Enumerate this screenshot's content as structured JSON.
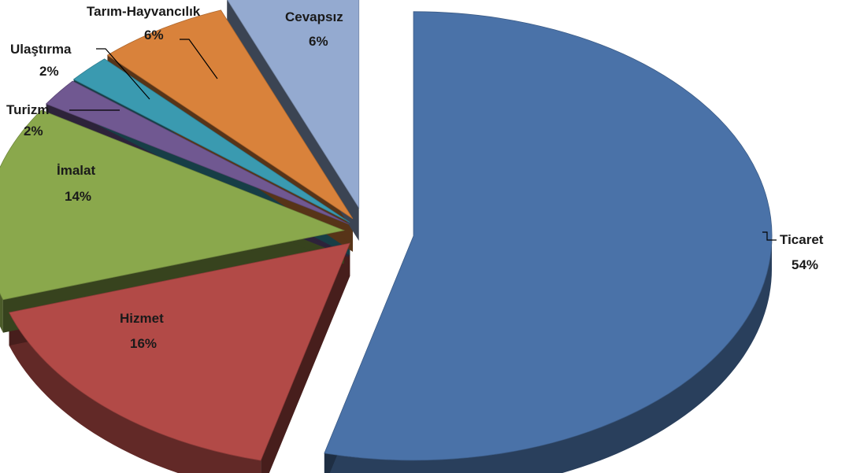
{
  "chart_data": {
    "type": "pie",
    "title": "",
    "style": "3d-exploded",
    "slices": [
      {
        "key": "ticaret",
        "label": "Ticaret",
        "value": 54,
        "pct_label": "54%",
        "color": "#4a72a8"
      },
      {
        "key": "hizmet",
        "label": "Hizmet",
        "value": 16,
        "pct_label": "16%",
        "color": "#b24a47"
      },
      {
        "key": "imalat",
        "label": "İmalat",
        "value": 14,
        "pct_label": "14%",
        "color": "#8aa84c"
      },
      {
        "key": "turizm",
        "label": "Turizm",
        "value": 2,
        "pct_label": "2%",
        "color": "#705891"
      },
      {
        "key": "ulastirma",
        "label": "Ulaştırma",
        "value": 2,
        "pct_label": "2%",
        "color": "#3a9ab0"
      },
      {
        "key": "tarim",
        "label": "Tarım-Hayvancılık",
        "value": 6,
        "pct_label": "6%",
        "color": "#d9823b"
      },
      {
        "key": "cevapsiz",
        "label": "Cevapsız",
        "value": 6,
        "pct_label": "6%",
        "color": "#94aad0"
      }
    ]
  }
}
